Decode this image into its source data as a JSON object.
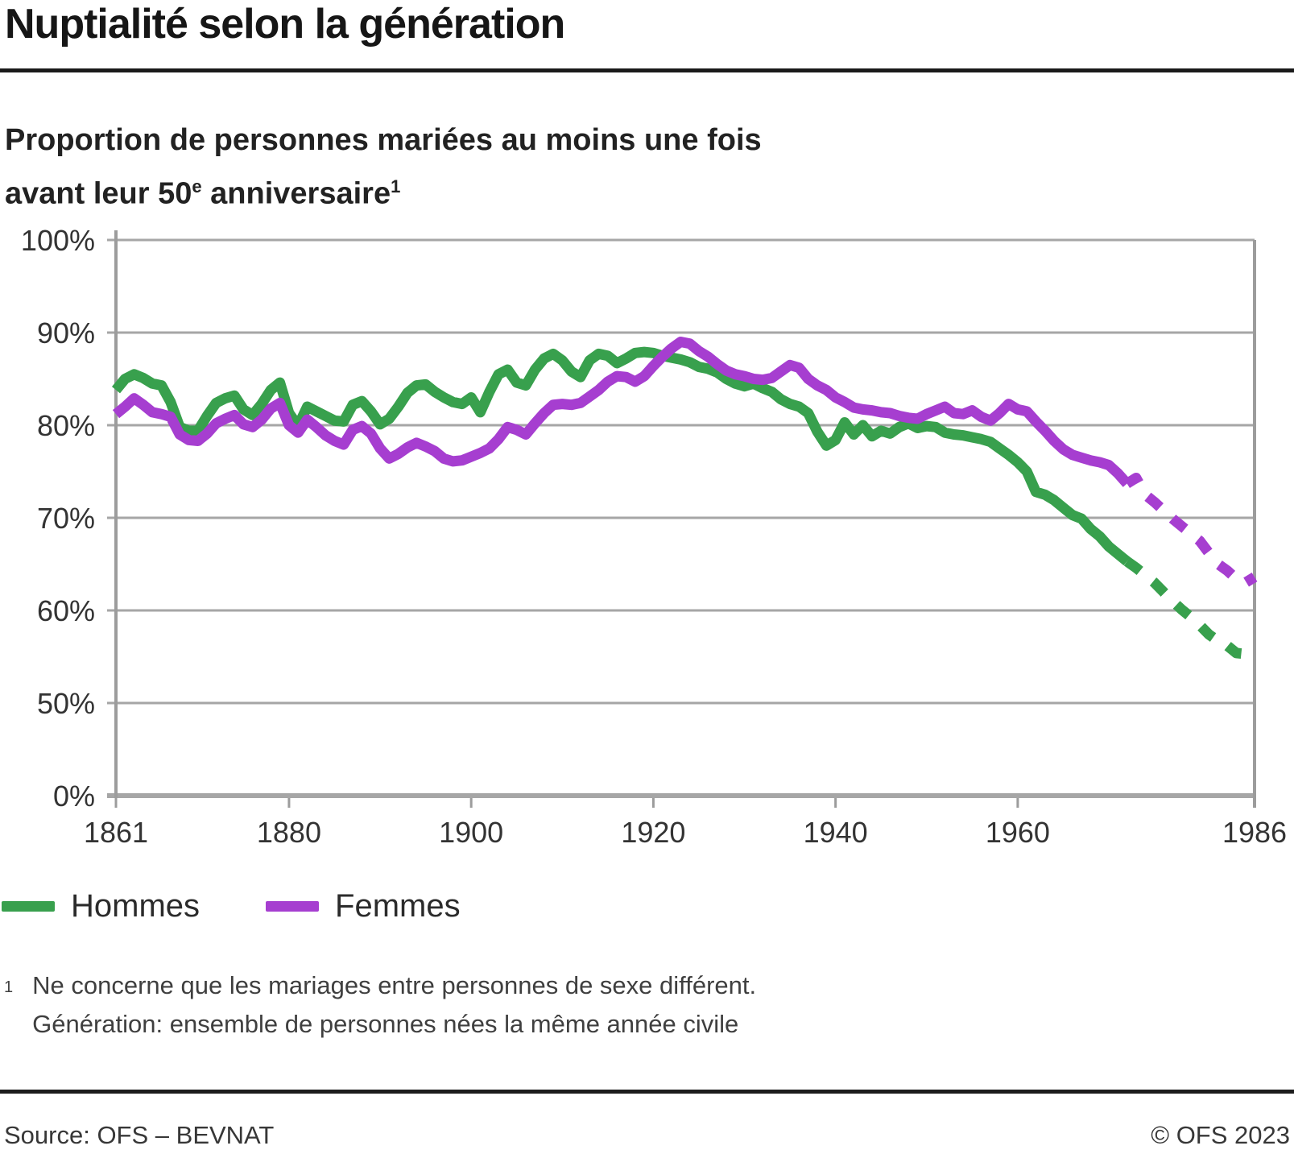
{
  "header": {
    "title": "Nuptialité selon la génération",
    "subtitle_line1": "Proportion de personnes mariées au moins une fois",
    "subtitle_line2": {
      "prefix": "avant leur 50",
      "sup_e": "e",
      "main": " anniversaire",
      "sup_note": "1"
    }
  },
  "chart_data": {
    "type": "line",
    "title": "Proportion de personnes mariées au moins une fois avant leur 50e anniversaire",
    "grid": true,
    "legend_position": "bottom",
    "colors": {
      "grid": "#a6a6a6",
      "axis": "#9c9c9c",
      "tick_text": "#333333"
    },
    "x_axis": {
      "min": 1861,
      "max": 1986,
      "ticks": [
        1861,
        1880,
        1900,
        1920,
        1940,
        1960,
        1986
      ]
    },
    "y_axis": {
      "unit": "%",
      "broken_below": 50,
      "ticks": [
        {
          "value": 100,
          "label": "100%"
        },
        {
          "value": 90,
          "label": "90%"
        },
        {
          "value": 80,
          "label": "80%"
        },
        {
          "value": 70,
          "label": "70%"
        },
        {
          "value": 60,
          "label": "60%"
        },
        {
          "value": 50,
          "label": "50%"
        },
        {
          "value": 0,
          "label": "0%"
        }
      ]
    },
    "series": [
      {
        "name": "Hommes",
        "color": "#38a04d",
        "dash_from": 1972,
        "points": [
          [
            1861,
            83.8
          ],
          [
            1862,
            85.0
          ],
          [
            1863,
            85.5
          ],
          [
            1864,
            85.1
          ],
          [
            1865,
            84.5
          ],
          [
            1866,
            84.3
          ],
          [
            1867,
            82.5
          ],
          [
            1868,
            79.8
          ],
          [
            1869,
            79.4
          ],
          [
            1870,
            79.4
          ],
          [
            1871,
            81.0
          ],
          [
            1872,
            82.4
          ],
          [
            1873,
            82.9
          ],
          [
            1874,
            83.2
          ],
          [
            1875,
            81.7
          ],
          [
            1876,
            81.1
          ],
          [
            1877,
            82.3
          ],
          [
            1878,
            83.8
          ],
          [
            1879,
            84.6
          ],
          [
            1880,
            81.3
          ],
          [
            1881,
            79.9
          ],
          [
            1882,
            82.0
          ],
          [
            1883,
            81.5
          ],
          [
            1884,
            81.0
          ],
          [
            1885,
            80.5
          ],
          [
            1886,
            80.4
          ],
          [
            1887,
            82.2
          ],
          [
            1888,
            82.6
          ],
          [
            1889,
            81.5
          ],
          [
            1890,
            80.1
          ],
          [
            1891,
            80.7
          ],
          [
            1892,
            82.0
          ],
          [
            1893,
            83.5
          ],
          [
            1894,
            84.3
          ],
          [
            1895,
            84.4
          ],
          [
            1896,
            83.6
          ],
          [
            1897,
            83.0
          ],
          [
            1898,
            82.5
          ],
          [
            1899,
            82.3
          ],
          [
            1900,
            83.0
          ],
          [
            1901,
            81.4
          ],
          [
            1902,
            83.6
          ],
          [
            1903,
            85.5
          ],
          [
            1904,
            86.0
          ],
          [
            1905,
            84.6
          ],
          [
            1906,
            84.3
          ],
          [
            1907,
            86.0
          ],
          [
            1908,
            87.2
          ],
          [
            1909,
            87.7
          ],
          [
            1910,
            87.0
          ],
          [
            1911,
            85.8
          ],
          [
            1912,
            85.2
          ],
          [
            1913,
            87.0
          ],
          [
            1914,
            87.7
          ],
          [
            1915,
            87.5
          ],
          [
            1916,
            86.7
          ],
          [
            1917,
            87.2
          ],
          [
            1918,
            87.8
          ],
          [
            1919,
            87.9
          ],
          [
            1920,
            87.8
          ],
          [
            1921,
            87.5
          ],
          [
            1922,
            87.3
          ],
          [
            1923,
            87.1
          ],
          [
            1924,
            86.8
          ],
          [
            1925,
            86.3
          ],
          [
            1926,
            86.1
          ],
          [
            1927,
            85.7
          ],
          [
            1928,
            85.0
          ],
          [
            1929,
            84.5
          ],
          [
            1930,
            84.2
          ],
          [
            1931,
            84.5
          ],
          [
            1932,
            84.0
          ],
          [
            1933,
            83.6
          ],
          [
            1934,
            82.8
          ],
          [
            1935,
            82.3
          ],
          [
            1936,
            82.0
          ],
          [
            1937,
            81.3
          ],
          [
            1938,
            79.3
          ],
          [
            1939,
            77.8
          ],
          [
            1940,
            78.4
          ],
          [
            1941,
            80.3
          ],
          [
            1942,
            79.0
          ],
          [
            1943,
            80.0
          ],
          [
            1944,
            78.8
          ],
          [
            1945,
            79.4
          ],
          [
            1946,
            79.1
          ],
          [
            1947,
            79.8
          ],
          [
            1948,
            80.2
          ],
          [
            1949,
            79.7
          ],
          [
            1950,
            79.9
          ],
          [
            1951,
            79.8
          ],
          [
            1952,
            79.2
          ],
          [
            1953,
            79.0
          ],
          [
            1954,
            78.9
          ],
          [
            1955,
            78.7
          ],
          [
            1956,
            78.5
          ],
          [
            1957,
            78.2
          ],
          [
            1958,
            77.5
          ],
          [
            1959,
            76.8
          ],
          [
            1960,
            76.0
          ],
          [
            1961,
            75.0
          ],
          [
            1962,
            72.8
          ],
          [
            1963,
            72.5
          ],
          [
            1964,
            71.9
          ],
          [
            1965,
            71.1
          ],
          [
            1966,
            70.3
          ],
          [
            1967,
            69.9
          ],
          [
            1968,
            68.8
          ],
          [
            1969,
            68.0
          ],
          [
            1970,
            66.9
          ],
          [
            1971,
            66.1
          ],
          [
            1972,
            65.3
          ],
          [
            1973,
            64.6
          ],
          [
            1974,
            63.8
          ],
          [
            1975,
            63.0
          ],
          [
            1976,
            62.0
          ],
          [
            1977,
            61.0
          ],
          [
            1978,
            60.1
          ],
          [
            1979,
            59.3
          ],
          [
            1980,
            58.4
          ],
          [
            1981,
            57.4
          ],
          [
            1982,
            56.7
          ],
          [
            1983,
            56.2
          ],
          [
            1984,
            55.4
          ],
          [
            1985,
            55.3
          ],
          [
            1986,
            55.3
          ]
        ]
      },
      {
        "name": "Femmes",
        "color": "#a63ed0",
        "dash_from": 1972,
        "points": [
          [
            1861,
            81.2
          ],
          [
            1862,
            82.0
          ],
          [
            1863,
            82.9
          ],
          [
            1864,
            82.2
          ],
          [
            1865,
            81.4
          ],
          [
            1866,
            81.2
          ],
          [
            1867,
            80.9
          ],
          [
            1868,
            79.0
          ],
          [
            1869,
            78.4
          ],
          [
            1870,
            78.3
          ],
          [
            1871,
            79.1
          ],
          [
            1872,
            80.2
          ],
          [
            1873,
            80.7
          ],
          [
            1874,
            81.1
          ],
          [
            1875,
            80.1
          ],
          [
            1876,
            79.8
          ],
          [
            1877,
            80.6
          ],
          [
            1878,
            81.8
          ],
          [
            1879,
            82.4
          ],
          [
            1880,
            80.0
          ],
          [
            1881,
            79.2
          ],
          [
            1882,
            80.6
          ],
          [
            1883,
            79.8
          ],
          [
            1884,
            78.9
          ],
          [
            1885,
            78.3
          ],
          [
            1886,
            77.9
          ],
          [
            1887,
            79.5
          ],
          [
            1888,
            79.9
          ],
          [
            1889,
            79.1
          ],
          [
            1890,
            77.5
          ],
          [
            1891,
            76.4
          ],
          [
            1892,
            76.9
          ],
          [
            1893,
            77.6
          ],
          [
            1894,
            78.1
          ],
          [
            1895,
            77.7
          ],
          [
            1896,
            77.2
          ],
          [
            1897,
            76.4
          ],
          [
            1898,
            76.1
          ],
          [
            1899,
            76.2
          ],
          [
            1900,
            76.6
          ],
          [
            1901,
            77.0
          ],
          [
            1902,
            77.5
          ],
          [
            1903,
            78.5
          ],
          [
            1904,
            79.8
          ],
          [
            1905,
            79.5
          ],
          [
            1906,
            79.0
          ],
          [
            1907,
            80.2
          ],
          [
            1908,
            81.3
          ],
          [
            1909,
            82.2
          ],
          [
            1910,
            82.3
          ],
          [
            1911,
            82.2
          ],
          [
            1912,
            82.4
          ],
          [
            1913,
            83.1
          ],
          [
            1914,
            83.8
          ],
          [
            1915,
            84.7
          ],
          [
            1916,
            85.3
          ],
          [
            1917,
            85.2
          ],
          [
            1918,
            84.7
          ],
          [
            1919,
            85.3
          ],
          [
            1920,
            86.4
          ],
          [
            1921,
            87.4
          ],
          [
            1922,
            88.3
          ],
          [
            1923,
            89.0
          ],
          [
            1924,
            88.8
          ],
          [
            1925,
            88.0
          ],
          [
            1926,
            87.4
          ],
          [
            1927,
            86.6
          ],
          [
            1928,
            85.9
          ],
          [
            1929,
            85.5
          ],
          [
            1930,
            85.3
          ],
          [
            1931,
            85.0
          ],
          [
            1932,
            84.9
          ],
          [
            1933,
            85.1
          ],
          [
            1934,
            85.8
          ],
          [
            1935,
            86.5
          ],
          [
            1936,
            86.2
          ],
          [
            1937,
            85.0
          ],
          [
            1938,
            84.3
          ],
          [
            1939,
            83.8
          ],
          [
            1940,
            83.0
          ],
          [
            1941,
            82.5
          ],
          [
            1942,
            81.9
          ],
          [
            1943,
            81.7
          ],
          [
            1944,
            81.6
          ],
          [
            1945,
            81.4
          ],
          [
            1946,
            81.3
          ],
          [
            1947,
            81.0
          ],
          [
            1948,
            80.8
          ],
          [
            1949,
            80.7
          ],
          [
            1950,
            81.2
          ],
          [
            1951,
            81.6
          ],
          [
            1952,
            82.0
          ],
          [
            1953,
            81.3
          ],
          [
            1954,
            81.2
          ],
          [
            1955,
            81.6
          ],
          [
            1956,
            80.9
          ],
          [
            1957,
            80.5
          ],
          [
            1958,
            81.3
          ],
          [
            1959,
            82.3
          ],
          [
            1960,
            81.7
          ],
          [
            1961,
            81.5
          ],
          [
            1962,
            80.4
          ],
          [
            1963,
            79.4
          ],
          [
            1964,
            78.3
          ],
          [
            1965,
            77.4
          ],
          [
            1966,
            76.8
          ],
          [
            1967,
            76.5
          ],
          [
            1968,
            76.2
          ],
          [
            1969,
            76.0
          ],
          [
            1970,
            75.7
          ],
          [
            1971,
            74.8
          ],
          [
            1972,
            73.7
          ],
          [
            1973,
            74.3
          ],
          [
            1974,
            72.5
          ],
          [
            1975,
            71.7
          ],
          [
            1976,
            70.8
          ],
          [
            1977,
            69.9
          ],
          [
            1978,
            69.1
          ],
          [
            1979,
            68.3
          ],
          [
            1980,
            67.5
          ],
          [
            1981,
            66.2
          ],
          [
            1982,
            65.0
          ],
          [
            1983,
            64.3
          ],
          [
            1984,
            63.4
          ],
          [
            1985,
            63.0
          ],
          [
            1986,
            63.6
          ]
        ]
      }
    ]
  },
  "footnote": {
    "marker": "1",
    "line1": "Ne concerne que les mariages entre personnes de sexe différent.",
    "line2": "Génération: ensemble de personnes nées la même année civile"
  },
  "footer": {
    "source": "Source: OFS – BEVNAT",
    "copyright": "© OFS 2023"
  }
}
